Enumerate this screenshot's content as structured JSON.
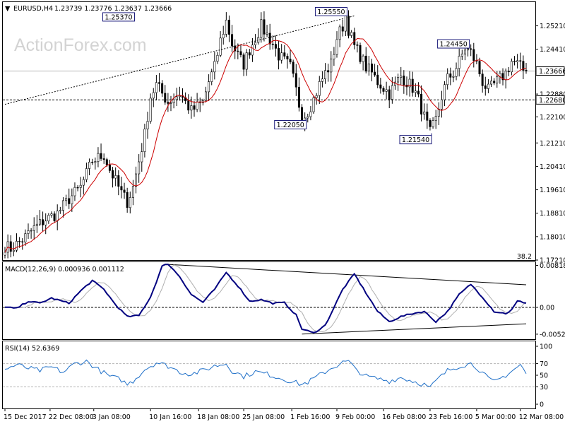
{
  "chart_data": [
    {
      "type": "candlestick",
      "header": {
        "arrow": "▼",
        "symbol": "EURUSD,H4",
        "values": "1.23739 1.23776 1.23637 1.23666"
      },
      "watermark": "ActionForex.com",
      "ylim": [
        1.1721,
        1.2602
      ],
      "y_ticks": [
        "1.25210",
        "1.24410",
        "1.23660",
        "1.22880",
        "1.22100",
        "1.21210",
        "1.20410",
        "1.19610",
        "1.18810",
        "1.18010",
        "1.17210"
      ],
      "current_price": {
        "value": 1.23666,
        "label": "1.23666"
      },
      "support_line": {
        "value": 1.2268,
        "label": "1.22680"
      },
      "fib_label": "38.2",
      "trendline": [
        {
          "x": 0,
          "y": 1.2253
        },
        {
          "x": 120,
          "y": 1.2555
        }
      ],
      "ma_color": "#cc0000",
      "callouts": [
        {
          "label": "1.25370",
          "x": 44.5,
          "y": 1.2537
        },
        {
          "label": "1.25550",
          "x": 117.5,
          "y": 1.2555
        },
        {
          "label": "1.22050",
          "x": 103.5,
          "y": 1.2205
        },
        {
          "label": "1.21540",
          "x": 146.5,
          "y": 1.2154
        },
        {
          "label": "1.24450",
          "x": 159.5,
          "y": 1.2445
        }
      ],
      "anchors": [
        [
          0,
          1.177
        ],
        [
          2,
          1.176
        ],
        [
          6,
          1.179
        ],
        [
          10,
          1.183
        ],
        [
          14,
          1.186
        ],
        [
          18,
          1.188
        ],
        [
          22,
          1.193
        ],
        [
          26,
          1.197
        ],
        [
          30,
          1.206
        ],
        [
          34,
          1.208
        ],
        [
          36,
          1.203
        ],
        [
          40,
          1.195
        ],
        [
          42,
          1.192
        ],
        [
          44,
          1.197
        ],
        [
          48,
          1.215
        ],
        [
          50,
          1.228
        ],
        [
          52,
          1.232
        ],
        [
          56,
          1.226
        ],
        [
          60,
          1.229
        ],
        [
          64,
          1.223
        ],
        [
          68,
          1.226
        ],
        [
          70,
          1.233
        ],
        [
          72,
          1.238
        ],
        [
          74,
          1.247
        ],
        [
          76,
          1.2537
        ],
        [
          78,
          1.246
        ],
        [
          80,
          1.242
        ],
        [
          82,
          1.239
        ],
        [
          84,
          1.244
        ],
        [
          86,
          1.248
        ],
        [
          88,
          1.252
        ],
        [
          90,
          1.249
        ],
        [
          92,
          1.246
        ],
        [
          94,
          1.242
        ],
        [
          96,
          1.24
        ],
        [
          98,
          1.238
        ],
        [
          100,
          1.23
        ],
        [
          102,
          1.2205
        ],
        [
          104,
          1.223
        ],
        [
          106,
          1.227
        ],
        [
          108,
          1.232
        ],
        [
          110,
          1.236
        ],
        [
          112,
          1.239
        ],
        [
          114,
          1.248
        ],
        [
          116,
          1.252
        ],
        [
          117,
          1.2555
        ],
        [
          118,
          1.251
        ],
        [
          120,
          1.245
        ],
        [
          122,
          1.242
        ],
        [
          124,
          1.238
        ],
        [
          126,
          1.236
        ],
        [
          128,
          1.233
        ],
        [
          130,
          1.231
        ],
        [
          132,
          1.229
        ],
        [
          134,
          1.232
        ],
        [
          136,
          1.235
        ],
        [
          138,
          1.233
        ],
        [
          140,
          1.231
        ],
        [
          142,
          1.227
        ],
        [
          144,
          1.221
        ],
        [
          146,
          1.2154
        ],
        [
          148,
          1.22
        ],
        [
          150,
          1.228
        ],
        [
          152,
          1.234
        ],
        [
          154,
          1.236
        ],
        [
          156,
          1.24
        ],
        [
          158,
          1.2445
        ],
        [
          160,
          1.243
        ],
        [
          162,
          1.239
        ],
        [
          164,
          1.233
        ],
        [
          166,
          1.23
        ],
        [
          168,
          1.232
        ],
        [
          170,
          1.234
        ],
        [
          172,
          1.236
        ],
        [
          174,
          1.24
        ],
        [
          176,
          1.239
        ],
        [
          178,
          1.237
        ],
        [
          179,
          1.23666
        ]
      ],
      "x_labels": [
        {
          "label": "15 Dec 2017",
          "x": 0
        },
        {
          "label": "22 Dec 08:00",
          "x": 15.5
        },
        {
          "label": "3 Jan 08:00",
          "x": 30.5
        },
        {
          "label": "10 Jan 16:00",
          "x": 50
        },
        {
          "label": "18 Jan 08:00",
          "x": 66.5
        },
        {
          "label": "25 Jan 08:00",
          "x": 82
        },
        {
          "label": "1 Feb 16:00",
          "x": 98.5
        },
        {
          "label": "9 Feb 00:00",
          "x": 114
        },
        {
          "label": "16 Feb 08:00",
          "x": 130
        },
        {
          "label": "23 Feb 16:00",
          "x": 146
        },
        {
          "label": "5 Mar 00:00",
          "x": 162
        },
        {
          "label": "12 Mar 08:00",
          "x": 177
        }
      ]
    },
    {
      "type": "line",
      "title": "MACD(12,26,9) 0.000936 0.001112",
      "ylim": [
        -0.0062,
        0.0088
      ],
      "y_ticks": [
        "0.008182",
        "0.00",
        "-0.005223"
      ],
      "zero_line": 0,
      "colors": {
        "macd": "#000080",
        "signal": "#b0b0b0"
      },
      "upper_trend": [
        {
          "x": 55,
          "y": 0.0084
        },
        {
          "x": 179,
          "y": 0.0044
        }
      ],
      "lower_trend": [
        {
          "x": 102,
          "y": -0.0052
        },
        {
          "x": 179,
          "y": -0.0032
        }
      ],
      "anchors": [
        [
          0,
          0.0
        ],
        [
          4,
          -0.0002
        ],
        [
          8,
          0.0012
        ],
        [
          12,
          0.0008
        ],
        [
          16,
          0.0018
        ],
        [
          22,
          0.0008
        ],
        [
          26,
          0.0032
        ],
        [
          30,
          0.0052
        ],
        [
          34,
          0.0035
        ],
        [
          38,
          0.0005
        ],
        [
          42,
          -0.0018
        ],
        [
          46,
          -0.0016
        ],
        [
          50,
          0.002
        ],
        [
          54,
          0.008
        ],
        [
          56,
          0.0085
        ],
        [
          60,
          0.006
        ],
        [
          64,
          0.0025
        ],
        [
          68,
          0.001
        ],
        [
          72,
          0.0035
        ],
        [
          76,
          0.0068
        ],
        [
          80,
          0.0042
        ],
        [
          84,
          0.0012
        ],
        [
          88,
          0.0015
        ],
        [
          92,
          0.0008
        ],
        [
          96,
          0.0009
        ],
        [
          100,
          -0.0015
        ],
        [
          102,
          -0.0042
        ],
        [
          106,
          -0.005
        ],
        [
          110,
          -0.0035
        ],
        [
          112,
          -0.0012
        ],
        [
          116,
          0.0035
        ],
        [
          120,
          0.0065
        ],
        [
          124,
          0.0028
        ],
        [
          128,
          -0.0008
        ],
        [
          132,
          -0.0028
        ],
        [
          136,
          -0.0018
        ],
        [
          140,
          -0.0012
        ],
        [
          144,
          -0.0008
        ],
        [
          148,
          -0.0028
        ],
        [
          152,
          -0.0008
        ],
        [
          156,
          0.0025
        ],
        [
          160,
          0.0045
        ],
        [
          164,
          0.002
        ],
        [
          168,
          -0.0008
        ],
        [
          172,
          -0.0012
        ],
        [
          174,
          -0.0005
        ],
        [
          176,
          0.0012
        ],
        [
          179,
          0.0009
        ]
      ]
    },
    {
      "type": "line",
      "title": "RSI(14) 52.6369",
      "ylim": [
        0,
        100
      ],
      "y_ticks": [
        "100",
        "70",
        "50",
        "30",
        "0"
      ],
      "levels": [
        70,
        30
      ],
      "color": "#1e6fc8",
      "anchors": [
        [
          0,
          60
        ],
        [
          4,
          68
        ],
        [
          8,
          62
        ],
        [
          12,
          58
        ],
        [
          16,
          64
        ],
        [
          20,
          55
        ],
        [
          24,
          70
        ],
        [
          28,
          74
        ],
        [
          32,
          60
        ],
        [
          36,
          48
        ],
        [
          40,
          42
        ],
        [
          42,
          34
        ],
        [
          44,
          40
        ],
        [
          48,
          60
        ],
        [
          52,
          72
        ],
        [
          56,
          66
        ],
        [
          60,
          56
        ],
        [
          64,
          52
        ],
        [
          68,
          58
        ],
        [
          72,
          66
        ],
        [
          76,
          70
        ],
        [
          78,
          58
        ],
        [
          82,
          48
        ],
        [
          86,
          56
        ],
        [
          90,
          52
        ],
        [
          94,
          46
        ],
        [
          98,
          40
        ],
        [
          102,
          34
        ],
        [
          104,
          38
        ],
        [
          108,
          50
        ],
        [
          112,
          62
        ],
        [
          116,
          72
        ],
        [
          118,
          74
        ],
        [
          120,
          62
        ],
        [
          124,
          48
        ],
        [
          128,
          44
        ],
        [
          132,
          40
        ],
        [
          136,
          46
        ],
        [
          140,
          40
        ],
        [
          144,
          34
        ],
        [
          146,
          28
        ],
        [
          148,
          40
        ],
        [
          152,
          58
        ],
        [
          156,
          66
        ],
        [
          160,
          70
        ],
        [
          162,
          64
        ],
        [
          166,
          44
        ],
        [
          168,
          38
        ],
        [
          172,
          50
        ],
        [
          176,
          64
        ],
        [
          177,
          68
        ],
        [
          179,
          52.6
        ]
      ]
    }
  ]
}
